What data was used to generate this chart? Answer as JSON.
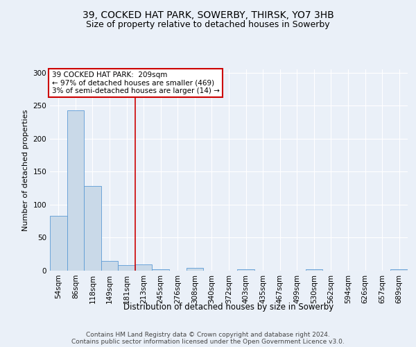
{
  "title1": "39, COCKED HAT PARK, SOWERBY, THIRSK, YO7 3HB",
  "title2": "Size of property relative to detached houses in Sowerby",
  "xlabel": "Distribution of detached houses by size in Sowerby",
  "ylabel": "Number of detached properties",
  "bar_labels": [
    "54sqm",
    "86sqm",
    "118sqm",
    "149sqm",
    "181sqm",
    "213sqm",
    "245sqm",
    "276sqm",
    "308sqm",
    "340sqm",
    "372sqm",
    "403sqm",
    "435sqm",
    "467sqm",
    "499sqm",
    "530sqm",
    "562sqm",
    "594sqm",
    "626sqm",
    "657sqm",
    "689sqm"
  ],
  "bar_values": [
    83,
    243,
    128,
    15,
    8,
    9,
    2,
    0,
    4,
    0,
    0,
    2,
    0,
    0,
    0,
    2,
    0,
    0,
    0,
    0,
    2
  ],
  "bar_color": "#c9d9e8",
  "bar_edge_color": "#5b9bd5",
  "vline_index": 5,
  "vline_color": "#cc0000",
  "annotation_text": "39 COCKED HAT PARK:  209sqm\n← 97% of detached houses are smaller (469)\n3% of semi-detached houses are larger (14) →",
  "annotation_box_color": "#ffffff",
  "annotation_box_edge": "#cc0000",
  "bg_color": "#eaf0f8",
  "plot_bg_color": "#eaf0f8",
  "footer": "Contains HM Land Registry data © Crown copyright and database right 2024.\nContains public sector information licensed under the Open Government Licence v3.0.",
  "ylim": [
    0,
    305
  ],
  "title1_fontsize": 10,
  "title2_fontsize": 9,
  "xlabel_fontsize": 8.5,
  "ylabel_fontsize": 8,
  "tick_fontsize": 7.5,
  "footer_fontsize": 6.5
}
